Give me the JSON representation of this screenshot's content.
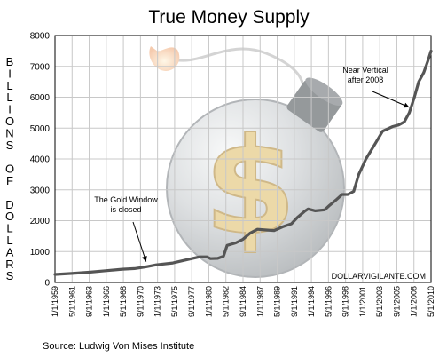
{
  "chart_data": {
    "type": "line",
    "title": "True Money Supply",
    "ylabel": "BILLIONS OF DOLLARS",
    "xlabel": "",
    "ylim": [
      0,
      8000
    ],
    "y_ticks": [
      "0",
      "1000",
      "2000",
      "3000",
      "4000",
      "5000",
      "6000",
      "7000",
      "8000"
    ],
    "x_ticks": [
      "1/1/1959",
      "5/1/1961",
      "9/1/1963",
      "1/1/1966",
      "5/1/1968",
      "9/1/1970",
      "1/1/1973",
      "5/1/1975",
      "9/1/1977",
      "1/1/1980",
      "5/1/1982",
      "9/1/1984",
      "1/1/1987",
      "5/1/1989",
      "9/1/1991",
      "1/1/1994",
      "5/1/1996",
      "9/1/1998",
      "1/1/2001",
      "5/1/2003",
      "9/1/2005",
      "1/1/2008",
      "5/1/2010"
    ],
    "grid": true,
    "series": [
      {
        "color": "#555555",
        "points": [
          [
            1959.0,
            260
          ],
          [
            1961.3,
            290
          ],
          [
            1963.7,
            330
          ],
          [
            1966.0,
            380
          ],
          [
            1968.3,
            430
          ],
          [
            1970.0,
            450
          ],
          [
            1971.5,
            500
          ],
          [
            1973.0,
            570
          ],
          [
            1975.3,
            630
          ],
          [
            1977.7,
            760
          ],
          [
            1979.0,
            830
          ],
          [
            1980.0,
            830
          ],
          [
            1980.5,
            770
          ],
          [
            1981.5,
            780
          ],
          [
            1982.3,
            850
          ],
          [
            1982.8,
            1200
          ],
          [
            1984.0,
            1280
          ],
          [
            1985.0,
            1400
          ],
          [
            1986.0,
            1600
          ],
          [
            1987.0,
            1720
          ],
          [
            1988.0,
            1700
          ],
          [
            1989.3,
            1680
          ],
          [
            1990.5,
            1800
          ],
          [
            1991.7,
            1900
          ],
          [
            1992.5,
            2100
          ],
          [
            1993.5,
            2300
          ],
          [
            1994.0,
            2380
          ],
          [
            1995.0,
            2320
          ],
          [
            1996.3,
            2350
          ],
          [
            1997.0,
            2500
          ],
          [
            1998.0,
            2700
          ],
          [
            1998.7,
            2850
          ],
          [
            1999.5,
            2850
          ],
          [
            2000.3,
            2950
          ],
          [
            2001.0,
            3500
          ],
          [
            2002.0,
            4000
          ],
          [
            2003.3,
            4500
          ],
          [
            2004.3,
            4900
          ],
          [
            2005.7,
            5050
          ],
          [
            2006.5,
            5100
          ],
          [
            2007.3,
            5200
          ],
          [
            2008.0,
            5500
          ],
          [
            2008.7,
            6000
          ],
          [
            2009.3,
            6500
          ],
          [
            2010.0,
            6800
          ],
          [
            2010.6,
            7200
          ],
          [
            2011.0,
            7500
          ]
        ]
      }
    ],
    "annotations": [
      {
        "text_lines": [
          "The Gold Window",
          "is closed"
        ],
        "points_to": [
          1971.6,
          500
        ]
      },
      {
        "text_lines": [
          "Near Vertical",
          "after 2008"
        ],
        "points_to": [
          2008.0,
          5500
        ]
      }
    ],
    "watermark": "DOLLARVIGILANTE.COM",
    "source": "Source: Ludwig Von Mises Institute"
  },
  "icons": {
    "background_illustration": "bomb-icon",
    "dollar_symbol": "$"
  },
  "colors": {
    "line": "#555555",
    "grid": "#c8c8c8",
    "axis": "#000000",
    "bomb": "#9aa0a3",
    "dollar": "#e0c070",
    "fuse_flame": "#f2b98a"
  }
}
